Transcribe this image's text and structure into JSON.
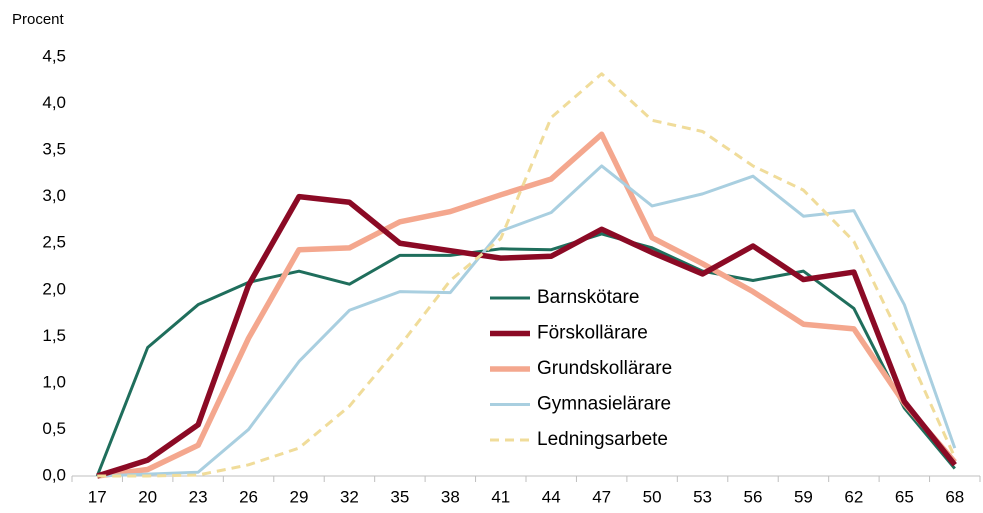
{
  "chart_data": {
    "type": "line",
    "y_label": "Procent",
    "categories": [
      "17",
      "20",
      "23",
      "26",
      "29",
      "32",
      "35",
      "38",
      "41",
      "44",
      "47",
      "50",
      "53",
      "56",
      "59",
      "62",
      "65",
      "68"
    ],
    "series": [
      {
        "name": "Barnskötare",
        "color": "#1f6e5c",
        "values": [
          0,
          1.38,
          1.84,
          2.08,
          2.2,
          2.06,
          2.37,
          2.37,
          2.44,
          2.43,
          2.6,
          2.45,
          2.2,
          2.1,
          2.2,
          1.8,
          0.73,
          0.08
        ]
      },
      {
        "name": "Förskollärare",
        "color": "#8b0a25",
        "values": [
          0,
          0.17,
          0.55,
          2.05,
          3.0,
          2.94,
          2.5,
          2.42,
          2.34,
          2.36,
          2.65,
          2.4,
          2.17,
          2.47,
          2.11,
          2.19,
          0.8,
          0.12
        ]
      },
      {
        "name": "Grundskollärare",
        "color": "#f4a78e",
        "values": [
          0,
          0.07,
          0.33,
          1.48,
          2.43,
          2.45,
          2.73,
          2.84,
          3.02,
          3.19,
          3.67,
          2.56,
          2.28,
          1.98,
          1.63,
          1.58,
          0.78,
          0.15
        ]
      },
      {
        "name": "Gymnasielärare",
        "color": "#a9cfe0",
        "values": [
          0,
          0.02,
          0.04,
          0.5,
          1.23,
          1.78,
          1.98,
          1.97,
          2.63,
          2.83,
          3.33,
          2.9,
          3.03,
          3.22,
          2.79,
          2.85,
          1.84,
          0.3
        ]
      },
      {
        "name": "Ledningsarbete",
        "color": "#f0dc9a",
        "dashed": true,
        "values": [
          0,
          0,
          0.01,
          0.12,
          0.3,
          0.75,
          1.4,
          2.1,
          2.55,
          3.85,
          4.32,
          3.82,
          3.7,
          3.33,
          3.07,
          2.52,
          1.4,
          0.2
        ]
      }
    ],
    "ylim": [
      0,
      4.5
    ],
    "yticks": [
      {
        "value": 0,
        "label": "0,0"
      },
      {
        "value": 0.5,
        "label": "0,5"
      },
      {
        "value": 1,
        "label": "1,0"
      },
      {
        "value": 1.5,
        "label": "1,5"
      },
      {
        "value": 2,
        "label": "2,0"
      },
      {
        "value": 2.5,
        "label": "2,5"
      },
      {
        "value": 3,
        "label": "3,0"
      },
      {
        "value": 3.5,
        "label": "3,5"
      },
      {
        "value": 4,
        "label": "4,0"
      },
      {
        "value": 4.5,
        "label": "4,5"
      }
    ],
    "grid": false
  }
}
